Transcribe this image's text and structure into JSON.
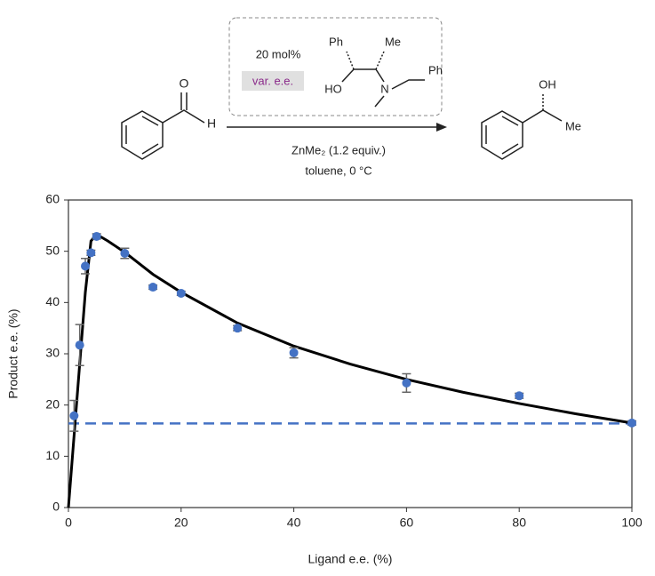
{
  "scheme": {
    "reagent_loading": "20 mol%",
    "ligand_ee": "var. e.e.",
    "ligand_labels": [
      "Ph",
      "Me",
      "HO",
      "N",
      "Ph"
    ],
    "aldehyde_labels": [
      "O",
      "H"
    ],
    "conditions": [
      "ZnMe₂ (1.2 equiv.)",
      "toluene, 0 °C"
    ],
    "product_labels": [
      "OH",
      "Me"
    ]
  },
  "chart_data": {
    "type": "scatter",
    "x_label": "Ligand e.e. (%)",
    "y_label": "Product e.e. (%)",
    "xlim": [
      0,
      100
    ],
    "ylim": [
      0,
      60
    ],
    "xticks": [
      0,
      20,
      40,
      60,
      80,
      100
    ],
    "yticks": [
      0,
      10,
      20,
      30,
      40,
      50,
      60
    ],
    "grid": false,
    "series": [
      {
        "type": "scatter",
        "color": "#4472c4",
        "x": [
          1,
          2,
          3,
          4,
          5,
          10,
          15,
          20,
          30,
          40,
          60,
          80,
          100
        ],
        "values": [
          17.9,
          31.7,
          47.1,
          49.7,
          52.9,
          49.6,
          43,
          41.8,
          35,
          30.2,
          24.3,
          21.8,
          16.5
        ],
        "errors": [
          3,
          4,
          1.5,
          0.5,
          0.5,
          1,
          0.4,
          0.4,
          0.5,
          1,
          1.8,
          0.5,
          0.4
        ]
      },
      {
        "type": "line",
        "color": "#000000",
        "dashed": false,
        "x": [
          0,
          1,
          2,
          3,
          4,
          5,
          7,
          10,
          15,
          20,
          30,
          40,
          50,
          60,
          70,
          80,
          90,
          100
        ],
        "values": [
          0,
          14,
          28,
          42,
          52,
          53.3,
          52,
          49.8,
          45.5,
          42,
          36,
          31.5,
          28,
          25,
          22.5,
          20.3,
          18.3,
          16.5
        ]
      },
      {
        "type": "line",
        "color": "#4472c4",
        "dashed": true,
        "x": [
          0,
          100
        ],
        "values": [
          16.4,
          16.4
        ]
      }
    ]
  }
}
